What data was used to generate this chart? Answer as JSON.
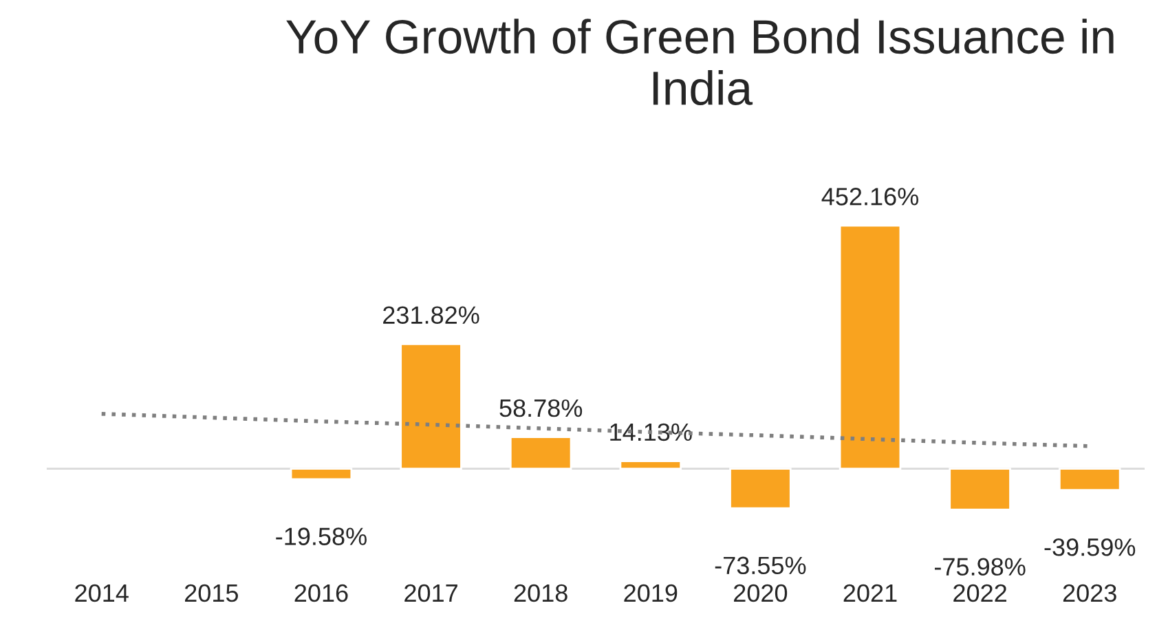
{
  "chart_data": {
    "type": "bar",
    "title": "YoY Growth of Green Bond Issuance in India",
    "categories": [
      "2014",
      "2015",
      "2016",
      "2017",
      "2018",
      "2019",
      "2020",
      "2021",
      "2022",
      "2023"
    ],
    "series": [
      {
        "color": "#f9a31f",
        "values": [
          null,
          null,
          -19.58,
          231.82,
          58.78,
          14.13,
          -73.55,
          452.16,
          -75.98,
          -39.59
        ],
        "value_labels": [
          null,
          null,
          "-19.58%",
          "231.82%",
          "58.78%",
          "14.13%",
          "-73.55%",
          "452.16%",
          "-75.98%",
          "-39.59%"
        ]
      },
      {
        "type": "line",
        "color": "#7f7f7f",
        "line_style": "dotted",
        "values": [
          102,
          95,
          88,
          82,
          75,
          68,
          62,
          55,
          48,
          42
        ]
      }
    ],
    "grid": false,
    "legend": false
  }
}
